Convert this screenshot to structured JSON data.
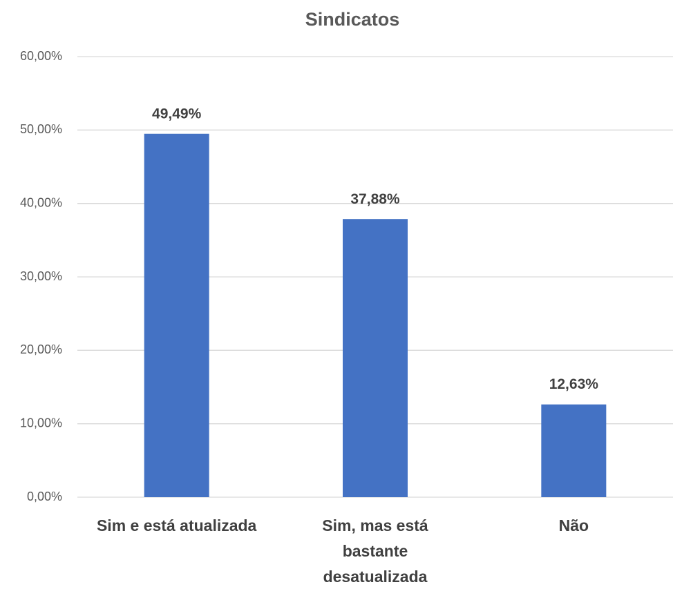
{
  "chart_data": {
    "type": "bar",
    "title": "Sindicatos",
    "categories": [
      "Sim e está atualizada",
      "Sim, mas está bastante desatualizada",
      "Não"
    ],
    "values": [
      49.49,
      37.88,
      12.63
    ],
    "value_labels": [
      "49,49%",
      "37,88%",
      "12,63%"
    ],
    "color": "#4472c4",
    "ylim": [
      0,
      60
    ],
    "yticks": [
      {
        "value": 0,
        "label": "0,00%"
      },
      {
        "value": 10,
        "label": "10,00%"
      },
      {
        "value": 20,
        "label": "20,00%"
      },
      {
        "value": 30,
        "label": "30,00%"
      },
      {
        "value": 40,
        "label": "40,00%"
      },
      {
        "value": 50,
        "label": "50,00%"
      },
      {
        "value": 60,
        "label": "60,00%"
      }
    ],
    "grid": true
  }
}
